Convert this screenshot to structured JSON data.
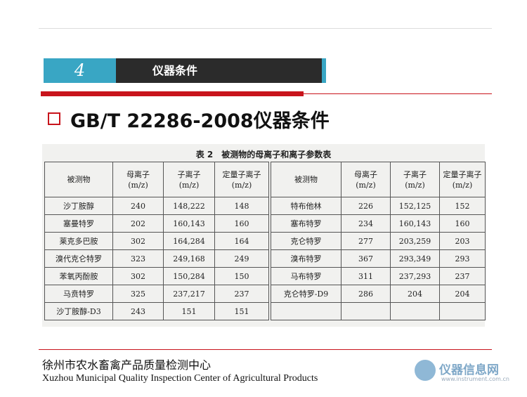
{
  "header": {
    "number": "4",
    "title": "仪器条件"
  },
  "heading": "GB/T 22286-2008仪器条件",
  "table": {
    "caption": "表 2　被测物的母离子和离子参数表",
    "columns": [
      {
        "name": "被测物"
      },
      {
        "name": "母离子",
        "unit": "(m/z)"
      },
      {
        "name": "子离子",
        "unit": "(m/z)"
      },
      {
        "name": "定量子离子",
        "unit": "(m/z)"
      }
    ],
    "left_rows": [
      [
        "沙丁胺醇",
        "240",
        "148,222",
        "148"
      ],
      [
        "塞曼特罗",
        "202",
        "160,143",
        "160"
      ],
      [
        "莱克多巴胺",
        "302",
        "164,284",
        "164"
      ],
      [
        "溴代克仑特罗",
        "323",
        "249,168",
        "249"
      ],
      [
        "苯氧丙酚胺",
        "302",
        "150,284",
        "150"
      ],
      [
        "马贲特罗",
        "325",
        "237,217",
        "237"
      ],
      [
        "沙丁胺醇-D3",
        "243",
        "151",
        "151"
      ]
    ],
    "right_rows": [
      [
        "特布他林",
        "226",
        "152,125",
        "152"
      ],
      [
        "塞布特罗",
        "234",
        "160,143",
        "160"
      ],
      [
        "克仑特罗",
        "277",
        "203,259",
        "203"
      ],
      [
        "溴布特罗",
        "367",
        "293,349",
        "293"
      ],
      [
        "马布特罗",
        "311",
        "237,293",
        "237"
      ],
      [
        "克仑特罗-D9",
        "286",
        "204",
        "204"
      ]
    ]
  },
  "footer": {
    "chinese": "徐州市农水畜禽产品质量检测中心",
    "english": "Xuzhou Municipal Quality Inspection Center of Agricultural Products"
  },
  "logo": {
    "name": "仪器信息网",
    "url": "www.instrument.com.cn"
  }
}
